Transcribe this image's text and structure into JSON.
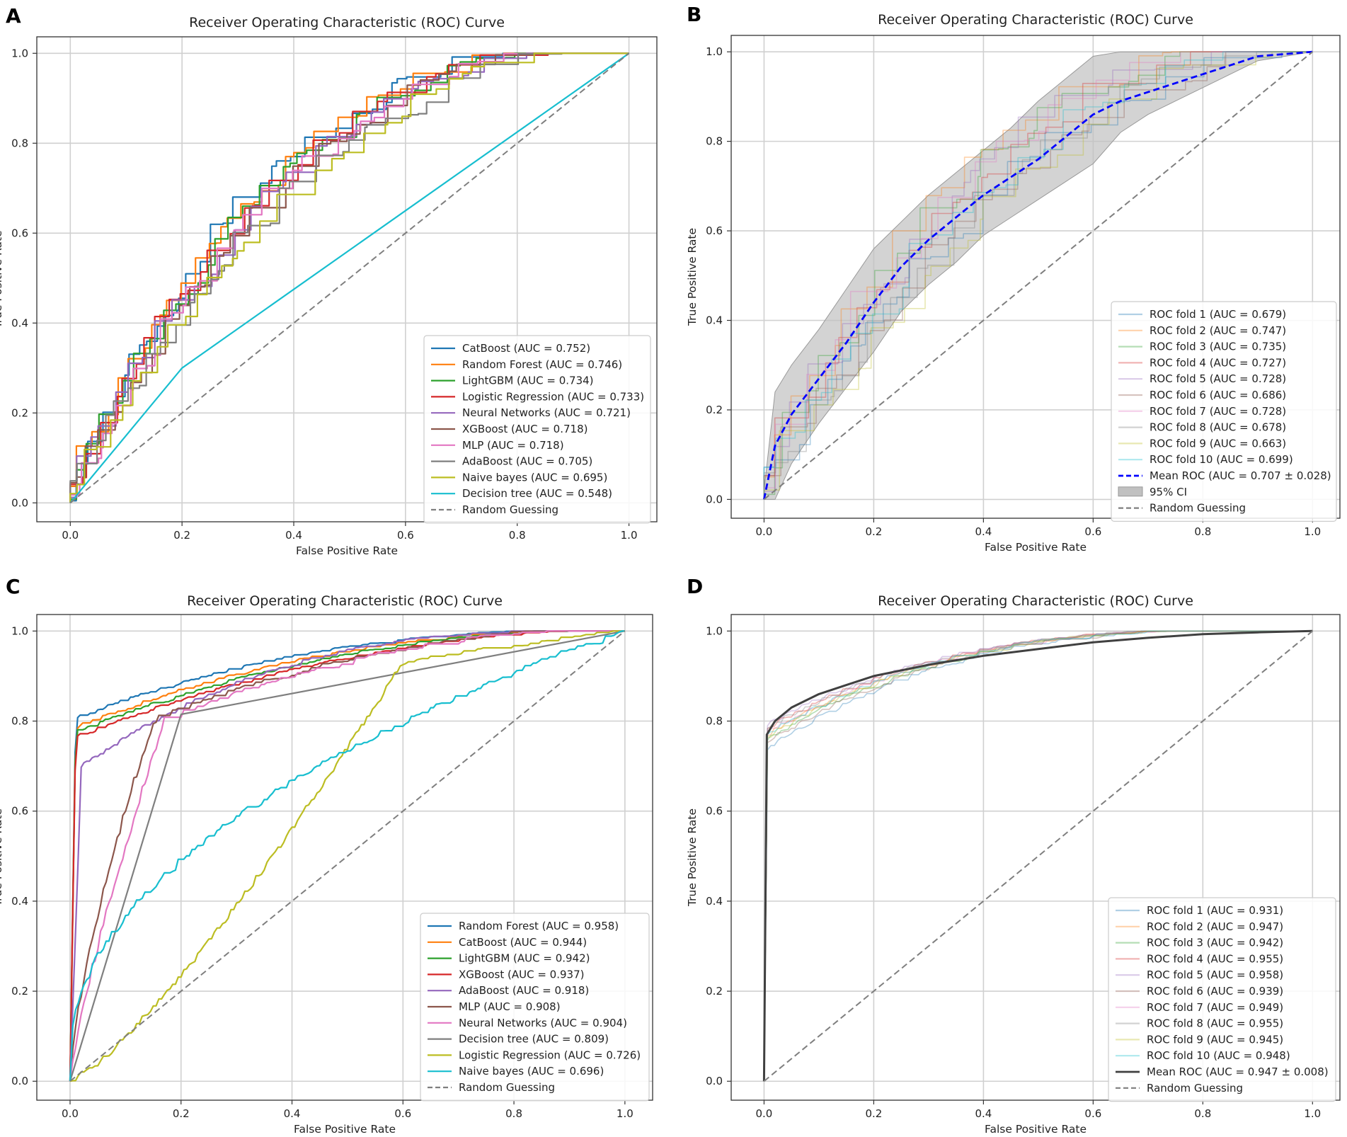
{
  "figure": {
    "panel_order": [
      "A",
      "B",
      "C",
      "D"
    ]
  },
  "axis_common": {
    "xlabel": "False Positive Rate",
    "ylabel": "True Positive Rate",
    "ticks": [
      "0.0",
      "0.2",
      "0.4",
      "0.6",
      "0.8",
      "1.0"
    ]
  },
  "chart_data": [
    {
      "panel": "A",
      "type": "line",
      "title": "Receiver Operating Characteristic (ROC) Curve",
      "xlabel": "False Positive Rate",
      "ylabel": "True Positive Rate",
      "xlim": [
        0,
        1
      ],
      "ylim": [
        0,
        1
      ],
      "legend_position": "bottom-right",
      "series": [
        {
          "name": "CatBoost (AUC = 0.752)",
          "color": "#1f77b4",
          "auc": 0.752
        },
        {
          "name": "Random Forest (AUC = 0.746)",
          "color": "#ff7f0e",
          "auc": 0.746
        },
        {
          "name": "LightGBM (AUC = 0.734)",
          "color": "#2ca02c",
          "auc": 0.734
        },
        {
          "name": "Logistic Regression (AUC = 0.733)",
          "color": "#d62728",
          "auc": 0.733
        },
        {
          "name": "Neural Networks (AUC = 0.721)",
          "color": "#9467bd",
          "auc": 0.721
        },
        {
          "name": "XGBoost (AUC = 0.718)",
          "color": "#8c564b",
          "auc": 0.718
        },
        {
          "name": "MLP (AUC = 0.718)",
          "color": "#e377c2",
          "auc": 0.718
        },
        {
          "name": "AdaBoost (AUC = 0.705)",
          "color": "#7f7f7f",
          "auc": 0.705
        },
        {
          "name": "Naive bayes (AUC = 0.695)",
          "color": "#bcbd22",
          "auc": 0.695
        },
        {
          "name": "Decision tree (AUC = 0.548)",
          "color": "#17becf",
          "auc": 0.548,
          "x": [
            0,
            0.2,
            1
          ],
          "y": [
            0,
            0.3,
            1
          ]
        },
        {
          "name": "Random Guessing",
          "color": "#7f7f7f",
          "style": "dashed",
          "x": [
            0,
            1
          ],
          "y": [
            0,
            1
          ]
        }
      ]
    },
    {
      "panel": "B",
      "type": "line",
      "title": "Receiver Operating Characteristic (ROC) Curve",
      "xlabel": "False Positive Rate",
      "ylabel": "True Positive Rate",
      "xlim": [
        0,
        1
      ],
      "ylim": [
        0,
        1
      ],
      "legend_position": "bottom-right",
      "series": [
        {
          "name": "ROC fold 1 (AUC = 0.679)",
          "color": "#1f77b4",
          "auc": 0.679
        },
        {
          "name": "ROC fold 2 (AUC = 0.747)",
          "color": "#ff7f0e",
          "auc": 0.747
        },
        {
          "name": "ROC fold 3 (AUC = 0.735)",
          "color": "#2ca02c",
          "auc": 0.735
        },
        {
          "name": "ROC fold 4 (AUC = 0.727)",
          "color": "#d62728",
          "auc": 0.727
        },
        {
          "name": "ROC fold 5 (AUC = 0.728)",
          "color": "#9467bd",
          "auc": 0.728
        },
        {
          "name": "ROC fold 6 (AUC = 0.686)",
          "color": "#8c564b",
          "auc": 0.686
        },
        {
          "name": "ROC fold 7 (AUC = 0.728)",
          "color": "#e377c2",
          "auc": 0.728
        },
        {
          "name": "ROC fold 8 (AUC = 0.678)",
          "color": "#7f7f7f",
          "auc": 0.678
        },
        {
          "name": "ROC fold 9 (AUC = 0.663)",
          "color": "#bcbd22",
          "auc": 0.663
        },
        {
          "name": "ROC fold 10 (AUC = 0.699)",
          "color": "#17becf",
          "auc": 0.699
        },
        {
          "name": "Mean ROC (AUC = 0.707 ± 0.028)",
          "color": "#0000ff",
          "style": "dashed",
          "auc": 0.707,
          "x": [
            0,
            0.02,
            0.05,
            0.1,
            0.15,
            0.2,
            0.25,
            0.3,
            0.35,
            0.4,
            0.45,
            0.5,
            0.55,
            0.6,
            0.65,
            0.7,
            0.75,
            0.8,
            0.85,
            0.9,
            0.95,
            1.0
          ],
          "y": [
            0,
            0.12,
            0.19,
            0.27,
            0.35,
            0.44,
            0.52,
            0.58,
            0.63,
            0.68,
            0.72,
            0.76,
            0.81,
            0.86,
            0.89,
            0.91,
            0.93,
            0.95,
            0.97,
            0.99,
            0.995,
            1.0
          ]
        },
        {
          "name": "95% CI",
          "color": "#c0c0c0",
          "style": "band",
          "x": [
            0,
            0.02,
            0.05,
            0.1,
            0.15,
            0.2,
            0.25,
            0.3,
            0.35,
            0.4,
            0.45,
            0.5,
            0.55,
            0.6,
            0.65,
            0.7,
            0.75,
            0.8,
            0.85,
            0.9,
            0.95,
            1.0
          ],
          "lower": [
            0,
            0.0,
            0.08,
            0.17,
            0.25,
            0.33,
            0.42,
            0.48,
            0.53,
            0.59,
            0.63,
            0.67,
            0.71,
            0.75,
            0.82,
            0.86,
            0.89,
            0.92,
            0.95,
            0.98,
            0.99,
            1.0
          ],
          "upper": [
            0.02,
            0.24,
            0.3,
            0.38,
            0.47,
            0.56,
            0.62,
            0.68,
            0.73,
            0.78,
            0.83,
            0.89,
            0.94,
            0.99,
            1.0,
            1.0,
            1.0,
            1.0,
            1.0,
            1.0,
            1.0,
            1.0
          ]
        },
        {
          "name": "Random Guessing",
          "color": "#7f7f7f",
          "style": "dashed",
          "x": [
            0,
            1
          ],
          "y": [
            0,
            1
          ]
        }
      ]
    },
    {
      "panel": "C",
      "type": "line",
      "title": "Receiver Operating Characteristic (ROC) Curve",
      "xlabel": "False Positive Rate",
      "ylabel": "True Positive Rate",
      "xlim": [
        0,
        1
      ],
      "ylim": [
        0,
        1
      ],
      "legend_position": "bottom-right",
      "series": [
        {
          "name": "Random Forest (AUC = 0.958)",
          "color": "#1f77b4",
          "auc": 0.958
        },
        {
          "name": "CatBoost (AUC = 0.944)",
          "color": "#ff7f0e",
          "auc": 0.944
        },
        {
          "name": "LightGBM (AUC = 0.942)",
          "color": "#2ca02c",
          "auc": 0.942
        },
        {
          "name": "XGBoost (AUC = 0.937)",
          "color": "#d62728",
          "auc": 0.937
        },
        {
          "name": "AdaBoost (AUC = 0.918)",
          "color": "#9467bd",
          "auc": 0.918
        },
        {
          "name": "MLP (AUC = 0.908)",
          "color": "#8c564b",
          "auc": 0.908
        },
        {
          "name": "Neural Networks (AUC = 0.904)",
          "color": "#e377c2",
          "auc": 0.904
        },
        {
          "name": "Decision tree (AUC = 0.809)",
          "color": "#7f7f7f",
          "auc": 0.809,
          "x": [
            0,
            0.2,
            1
          ],
          "y": [
            0,
            0.815,
            1
          ]
        },
        {
          "name": "Logistic Regression (AUC = 0.726)",
          "color": "#bcbd22",
          "auc": 0.726
        },
        {
          "name": "Naive bayes (AUC = 0.696)",
          "color": "#17becf",
          "auc": 0.696
        },
        {
          "name": "Random Guessing",
          "color": "#7f7f7f",
          "style": "dashed",
          "x": [
            0,
            1
          ],
          "y": [
            0,
            1
          ]
        }
      ]
    },
    {
      "panel": "D",
      "type": "line",
      "title": "Receiver Operating Characteristic (ROC) Curve",
      "xlabel": "False Positive Rate",
      "ylabel": "True Positive Rate",
      "xlim": [
        0,
        1
      ],
      "ylim": [
        0,
        1
      ],
      "legend_position": "bottom-right",
      "series": [
        {
          "name": "ROC fold 1 (AUC = 0.931)",
          "color": "#1f77b4",
          "auc": 0.931
        },
        {
          "name": "ROC fold 2 (AUC = 0.947)",
          "color": "#ff7f0e",
          "auc": 0.947
        },
        {
          "name": "ROC fold 3 (AUC = 0.942)",
          "color": "#2ca02c",
          "auc": 0.942
        },
        {
          "name": "ROC fold 4 (AUC = 0.955)",
          "color": "#d62728",
          "auc": 0.955
        },
        {
          "name": "ROC fold 5 (AUC = 0.958)",
          "color": "#9467bd",
          "auc": 0.958
        },
        {
          "name": "ROC fold 6 (AUC = 0.939)",
          "color": "#8c564b",
          "auc": 0.939
        },
        {
          "name": "ROC fold 7 (AUC = 0.949)",
          "color": "#e377c2",
          "auc": 0.949
        },
        {
          "name": "ROC fold 8 (AUC = 0.955)",
          "color": "#7f7f7f",
          "auc": 0.955
        },
        {
          "name": "ROC fold 9 (AUC = 0.945)",
          "color": "#bcbd22",
          "auc": 0.945
        },
        {
          "name": "ROC fold 10 (AUC = 0.948)",
          "color": "#17becf",
          "auc": 0.948
        },
        {
          "name": "Mean ROC (AUC = 0.947 ± 0.008)",
          "color": "#404040",
          "auc": 0.947,
          "x": [
            0,
            0.005,
            0.02,
            0.05,
            0.1,
            0.15,
            0.2,
            0.3,
            0.4,
            0.5,
            0.6,
            0.7,
            0.8,
            0.9,
            1.0
          ],
          "y": [
            0,
            0.77,
            0.8,
            0.83,
            0.86,
            0.88,
            0.9,
            0.925,
            0.945,
            0.96,
            0.975,
            0.985,
            0.993,
            0.997,
            1.0
          ]
        },
        {
          "name": "Random Guessing",
          "color": "#7f7f7f",
          "style": "dashed",
          "x": [
            0,
            1
          ],
          "y": [
            0,
            1
          ]
        }
      ]
    }
  ]
}
